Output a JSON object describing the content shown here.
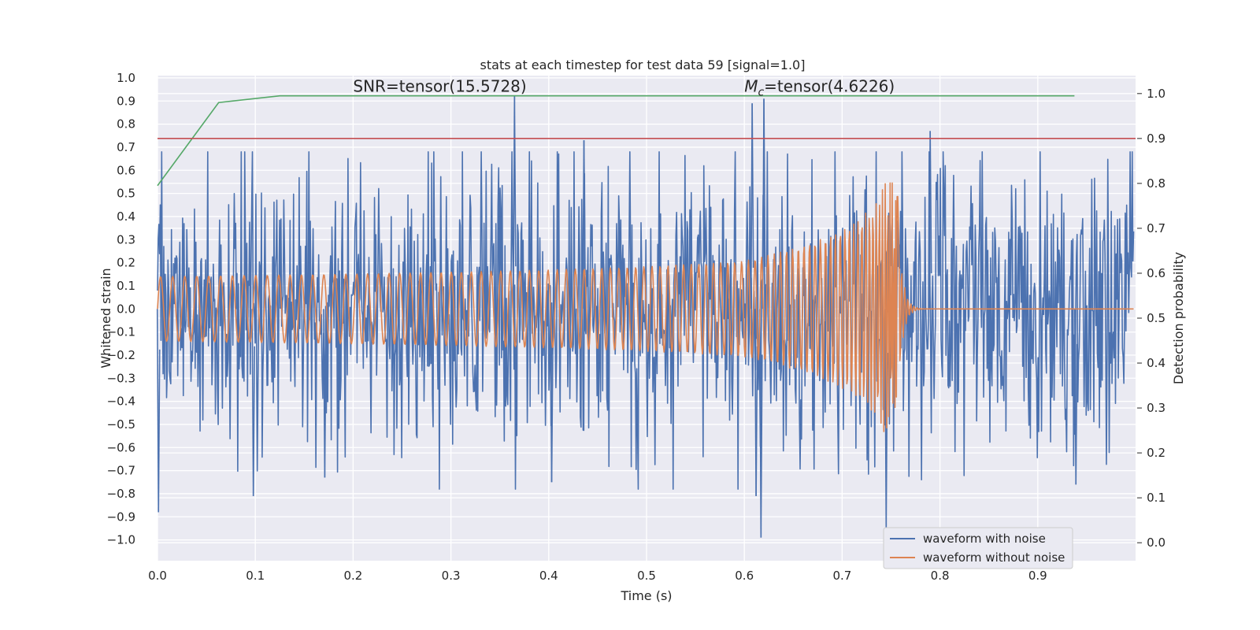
{
  "chart_data": {
    "type": "line",
    "title": "stats at each timestep for test data 59 [signal=1.0]",
    "xlabel": "Time (s)",
    "ylabel": "Whitened strain",
    "y2label": "Detection probability",
    "xlim": [
      0.0,
      1.0
    ],
    "ylim": [
      -1.09,
      1.01
    ],
    "y2lim": [
      -0.04,
      1.04
    ],
    "xticks": [
      "0.0",
      "0.1",
      "0.2",
      "0.3",
      "0.4",
      "0.5",
      "0.6",
      "0.7",
      "0.8",
      "0.9"
    ],
    "yticks": [
      "1.0",
      "0.9",
      "0.8",
      "0.7",
      "0.6",
      "0.5",
      "0.4",
      "0.3",
      "0.2",
      "0.1",
      "0.0",
      "−0.1",
      "−0.2",
      "−0.3",
      "−0.4",
      "−0.5",
      "−0.6",
      "−0.7",
      "−0.8",
      "−0.9",
      "−1.0"
    ],
    "y2ticks": [
      "1.0",
      "0.9",
      "0.8",
      "0.7",
      "0.6",
      "0.5",
      "0.4",
      "0.3",
      "0.2",
      "0.1",
      "0.0"
    ],
    "grid": true,
    "legend_position": "lower-right",
    "annotations": [
      {
        "text": "SNR=tensor(15.5728)",
        "x": 0.2,
        "y": 0.94
      },
      {
        "text_main": "M",
        "text_sub": "c",
        "text_rest": "=tensor(4.6226)",
        "x": 0.6,
        "y": 0.94
      }
    ],
    "series": [
      {
        "name": "waveform with noise",
        "color": "#4c72b0",
        "axis": "left",
        "noise_amplitude": 0.3,
        "peaks": [
          {
            "x": 0.001,
            "y": -0.88
          },
          {
            "x": 0.098,
            "y": -0.81
          },
          {
            "x": 0.171,
            "y": -0.73
          },
          {
            "x": 0.365,
            "y": 0.92
          },
          {
            "x": 0.403,
            "y": -0.75
          },
          {
            "x": 0.436,
            "y": 0.73
          },
          {
            "x": 0.608,
            "y": 0.89
          },
          {
            "x": 0.612,
            "y": -0.81
          },
          {
            "x": 0.62,
            "y": 0.91
          },
          {
            "x": 0.617,
            "y": -0.99
          },
          {
            "x": 0.745,
            "y": -0.95
          },
          {
            "x": 0.79,
            "y": 0.77
          },
          {
            "x": 0.939,
            "y": -0.76
          }
        ]
      },
      {
        "name": "waveform without noise",
        "color": "#dd8452",
        "axis": "left",
        "amplitude_start": 0.14,
        "amplitude_peak": 0.55,
        "merger_time": 0.757,
        "ringdown_end": 0.79
      },
      {
        "name": "",
        "color": "#55a868",
        "axis": "right",
        "x": [
          0.0,
          0.0625,
          0.125,
          0.1875,
          0.25,
          0.3125,
          0.375,
          0.4375,
          0.5,
          0.5625,
          0.625,
          0.6875,
          0.75,
          0.8125,
          0.875,
          0.9375
        ],
        "y": [
          0.795,
          0.98,
          0.995,
          0.995,
          0.995,
          0.995,
          0.995,
          0.995,
          0.995,
          0.995,
          0.995,
          0.995,
          0.995,
          0.995,
          0.995,
          0.995
        ]
      },
      {
        "name": "",
        "color": "#c44e52",
        "axis": "right",
        "x": [
          0.0,
          1.0
        ],
        "y": [
          0.9,
          0.9
        ]
      }
    ]
  }
}
